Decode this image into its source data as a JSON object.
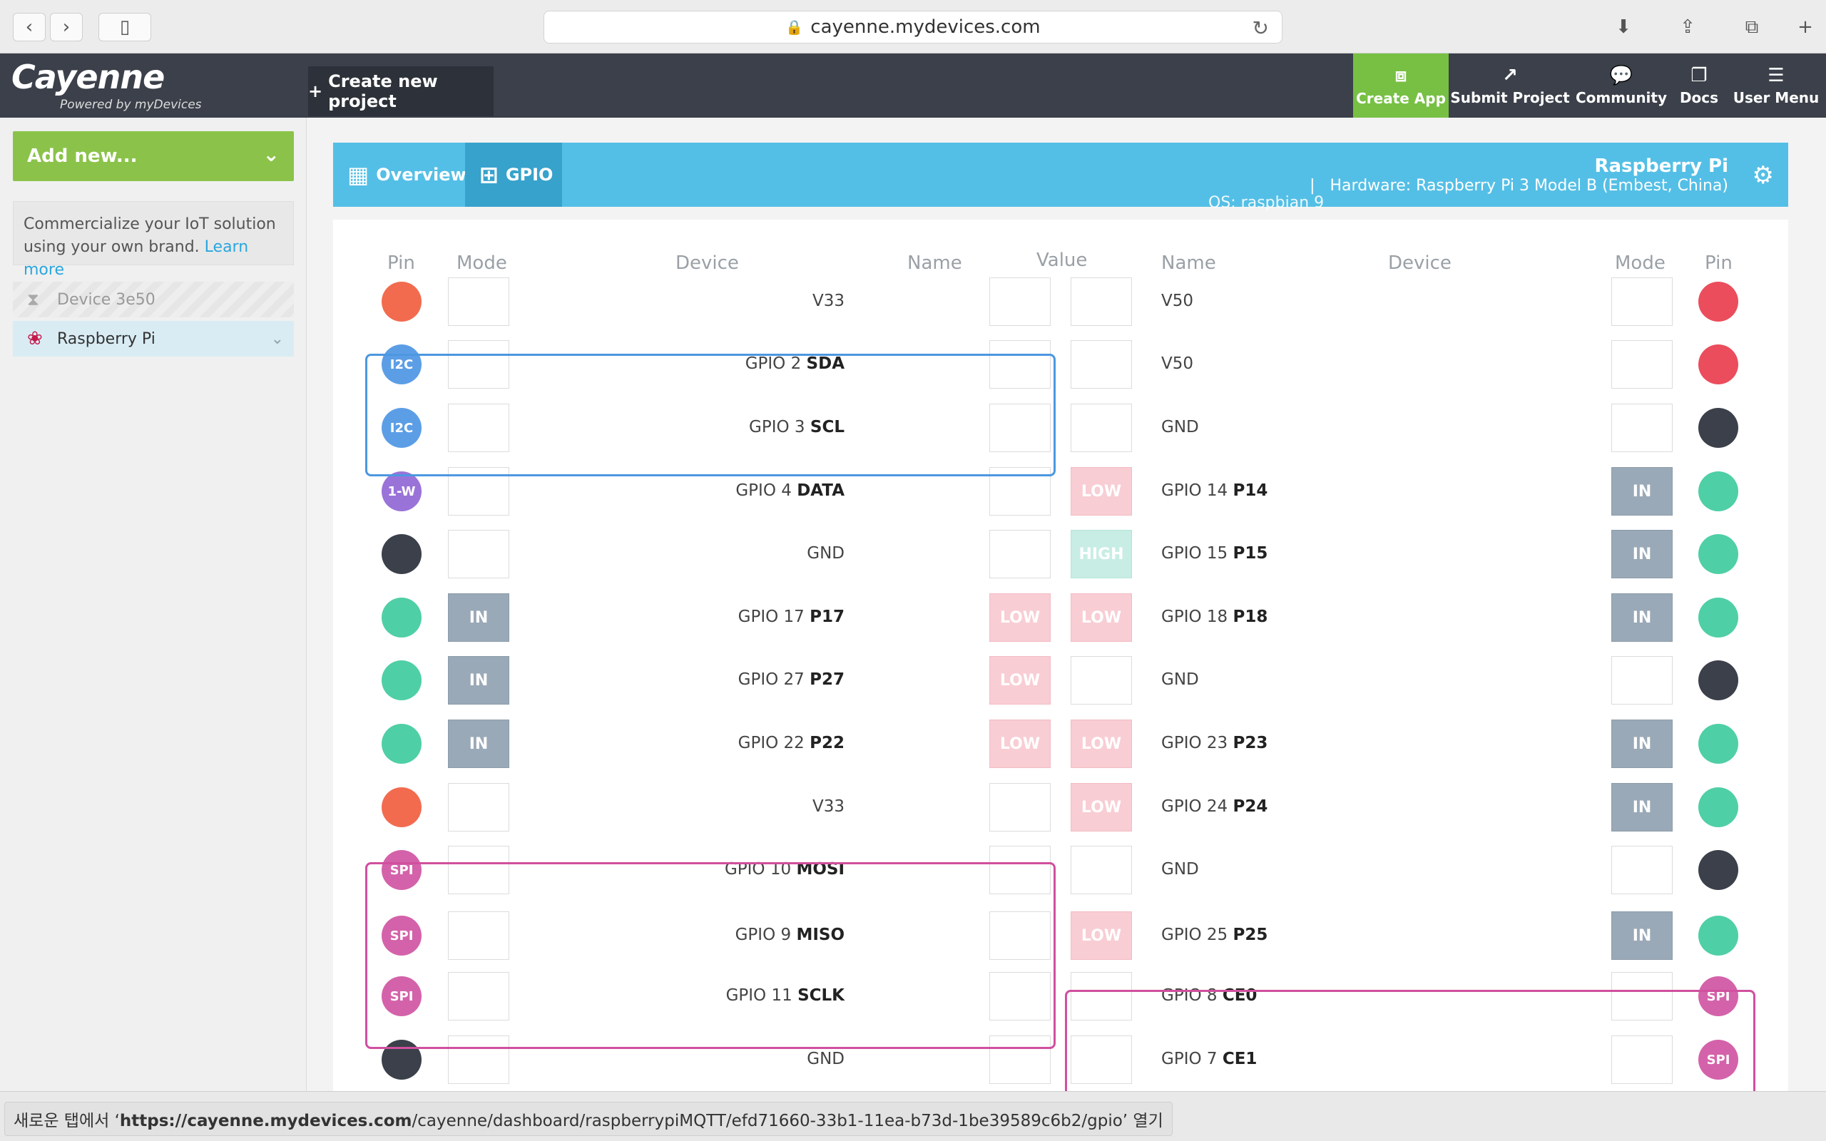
{
  "browser": {
    "url": "cayenne.mydevices.com"
  },
  "header": {
    "brand": "Cayenne",
    "powered": "Powered by myDevices",
    "create_project": "Create new project",
    "nav": [
      {
        "label": "Create App",
        "icon": "create-app-icon"
      },
      {
        "label": "Submit Project",
        "icon": "share-icon"
      },
      {
        "label": "Community",
        "icon": "chat-icon"
      },
      {
        "label": "Docs",
        "icon": "docs-icon"
      },
      {
        "label": "User Menu",
        "icon": "hamburger-icon"
      }
    ],
    "accent": "#77c043"
  },
  "sidebar": {
    "add_new": "Add new...",
    "promo_text": "Commercialize your IoT solution using your own brand.",
    "promo_link": "Learn more",
    "devices": [
      {
        "label": "Device 3e50",
        "state": "pending"
      },
      {
        "label": "Raspberry Pi",
        "state": "selected"
      }
    ]
  },
  "device_bar": {
    "tabs": [
      {
        "label": "Overview"
      },
      {
        "label": "GPIO"
      }
    ],
    "title": "Raspberry Pi",
    "hardware": "Hardware: Raspberry Pi 3 Model B (Embest, China)",
    "os": "OS: raspbian 9",
    "color": "#54bfe6"
  },
  "gpio": {
    "headers": {
      "pin_l": "Pin",
      "mode_l": "Mode",
      "device_l": "Device",
      "name_l": "Name",
      "value": "Value",
      "name_r": "Name",
      "device_r": "Device",
      "mode_r": "Mode",
      "pin_r": "Pin"
    },
    "pin_colors": {
      "power5": "#eb4d5c",
      "power33": "#f26b4f",
      "gnd": "#3b404a",
      "gpio": "#4fcfa6",
      "i2c": "#5c9ee6",
      "onewire": "#9a73d8",
      "spi": "#d462aa"
    },
    "rows": [
      {
        "l_pin": "",
        "l_kind": "power33",
        "l_mode": "",
        "l_name": "V33",
        "l_bold": "",
        "l_val": "",
        "r_val": "",
        "r_name": "V50",
        "r_bold": "",
        "r_mode": "",
        "r_pin": "",
        "r_kind": "power5"
      },
      {
        "l_pin": "I2C",
        "l_kind": "i2c",
        "l_mode": "",
        "l_name": "GPIO 2",
        "l_bold": "SDA",
        "l_val": "",
        "r_val": "",
        "r_name": "V50",
        "r_bold": "",
        "r_mode": "",
        "r_pin": "",
        "r_kind": "power5"
      },
      {
        "l_pin": "I2C",
        "l_kind": "i2c",
        "l_mode": "",
        "l_name": "GPIO 3",
        "l_bold": "SCL",
        "l_val": "",
        "r_val": "",
        "r_name": "GND",
        "r_bold": "",
        "r_mode": "",
        "r_pin": "",
        "r_kind": "gnd"
      },
      {
        "l_pin": "1-W",
        "l_kind": "onewire",
        "l_mode": "",
        "l_name": "GPIO 4",
        "l_bold": "DATA",
        "l_val": "",
        "r_val": "LOW",
        "r_name": "GPIO 14",
        "r_bold": "P14",
        "r_mode": "IN",
        "r_pin": "",
        "r_kind": "gpio"
      },
      {
        "l_pin": "",
        "l_kind": "gnd",
        "l_mode": "",
        "l_name": "GND",
        "l_bold": "",
        "l_val": "",
        "r_val": "HIGH",
        "r_name": "GPIO 15",
        "r_bold": "P15",
        "r_mode": "IN",
        "r_pin": "",
        "r_kind": "gpio"
      },
      {
        "l_pin": "",
        "l_kind": "gpio",
        "l_mode": "IN",
        "l_name": "GPIO 17",
        "l_bold": "P17",
        "l_val": "LOW",
        "r_val": "LOW",
        "r_name": "GPIO 18",
        "r_bold": "P18",
        "r_mode": "IN",
        "r_pin": "",
        "r_kind": "gpio"
      },
      {
        "l_pin": "",
        "l_kind": "gpio",
        "l_mode": "IN",
        "l_name": "GPIO 27",
        "l_bold": "P27",
        "l_val": "LOW",
        "r_val": "",
        "r_name": "GND",
        "r_bold": "",
        "r_mode": "",
        "r_pin": "",
        "r_kind": "gnd"
      },
      {
        "l_pin": "",
        "l_kind": "gpio",
        "l_mode": "IN",
        "l_name": "GPIO 22",
        "l_bold": "P22",
        "l_val": "LOW",
        "r_val": "LOW",
        "r_name": "GPIO 23",
        "r_bold": "P23",
        "r_mode": "IN",
        "r_pin": "",
        "r_kind": "gpio"
      },
      {
        "l_pin": "",
        "l_kind": "power33",
        "l_mode": "",
        "l_name": "V33",
        "l_bold": "",
        "l_val": "",
        "r_val": "LOW",
        "r_name": "GPIO 24",
        "r_bold": "P24",
        "r_mode": "IN",
        "r_pin": "",
        "r_kind": "gpio"
      },
      {
        "l_pin": "SPI",
        "l_kind": "spi",
        "l_mode": "",
        "l_name": "GPIO 10",
        "l_bold": "MOSI",
        "l_val": "",
        "r_val": "",
        "r_name": "GND",
        "r_bold": "",
        "r_mode": "",
        "r_pin": "",
        "r_kind": "gnd"
      },
      {
        "l_pin": "SPI",
        "l_kind": "spi",
        "l_mode": "",
        "l_name": "GPIO 9",
        "l_bold": "MISO",
        "l_val": "",
        "r_val": "LOW",
        "r_name": "GPIO 25",
        "r_bold": "P25",
        "r_mode": "IN",
        "r_pin": "",
        "r_kind": "gpio"
      },
      {
        "l_pin": "SPI",
        "l_kind": "spi",
        "l_mode": "",
        "l_name": "GPIO 11",
        "l_bold": "SCLK",
        "l_val": "",
        "r_val": "",
        "r_name": "GPIO 8",
        "r_bold": "CE0",
        "r_mode": "",
        "r_pin": "SPI",
        "r_kind": "spi"
      },
      {
        "l_pin": "",
        "l_kind": "gnd",
        "l_mode": "",
        "l_name": "GND",
        "l_bold": "",
        "l_val": "",
        "r_val": "",
        "r_name": "GPIO 7",
        "r_bold": "CE1",
        "r_mode": "",
        "r_pin": "SPI",
        "r_kind": "spi"
      }
    ]
  },
  "status_bar": {
    "prefix": "새로운 탭에서 ‘",
    "host": "https://cayenne.mydevices.com",
    "path": "/cayenne/dashboard/raspberrypiMQTT/efd71660-33b1-11ea-b73d-1be39589c6b2/gpio",
    "suffix": "’ 열기"
  }
}
